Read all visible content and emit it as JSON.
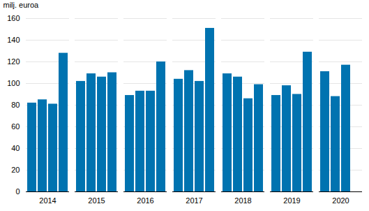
{
  "chart_data": {
    "type": "bar",
    "y_label": "milj. euroa",
    "categories": [
      "2014",
      "2015",
      "2016",
      "2017",
      "2018",
      "2019",
      "2020"
    ],
    "values": [
      [
        82,
        85,
        81,
        128
      ],
      [
        102,
        109,
        106,
        110
      ],
      [
        89,
        93,
        93,
        120
      ],
      [
        104,
        112,
        102,
        151
      ],
      [
        109,
        106,
        86,
        99
      ],
      [
        89,
        98,
        90,
        129
      ],
      [
        111,
        88,
        117
      ]
    ],
    "color": "#0073b0",
    "ylim": [
      0,
      160
    ],
    "yticks": [
      0,
      20,
      40,
      60,
      80,
      100,
      120,
      140,
      160
    ],
    "grid": true
  }
}
